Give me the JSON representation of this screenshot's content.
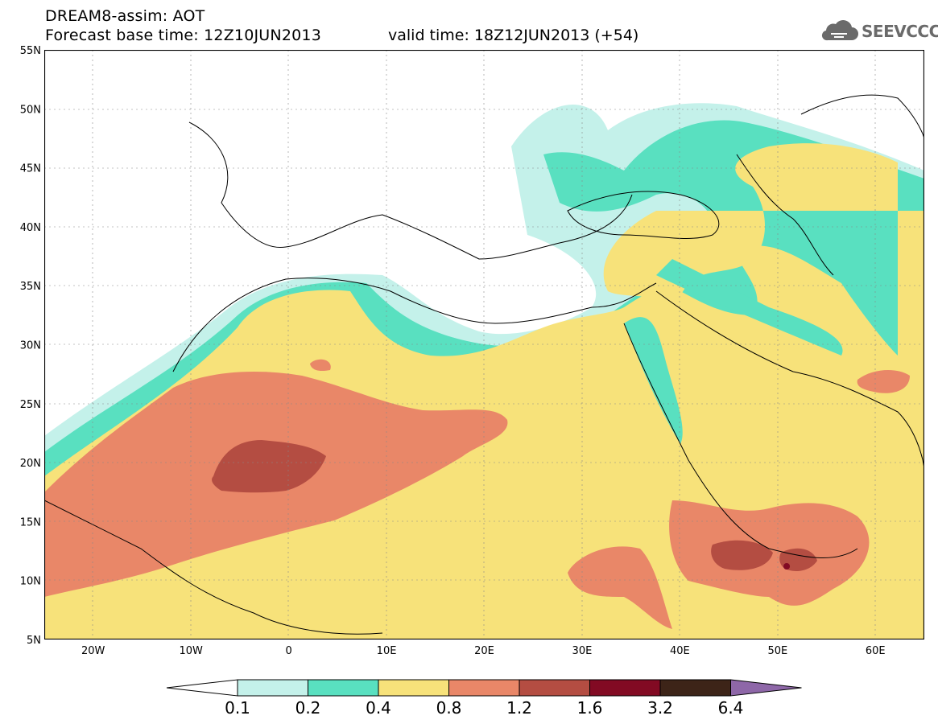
{
  "header": {
    "title_line1": "DREAM8-assim: AOT",
    "title_line2": "Forecast base time: 12Z10JUN2013",
    "valid_time": "valid time: 18Z12JUN2013 (+54)",
    "logo_text": "SEEVCCC",
    "logo_icon": "cloud-icon"
  },
  "map": {
    "lat_labels": [
      "55N",
      "50N",
      "45N",
      "40N",
      "35N",
      "30N",
      "25N",
      "20N",
      "15N",
      "10N",
      "5N"
    ],
    "lon_labels": [
      "20W",
      "10W",
      "0",
      "10E",
      "20E",
      "30E",
      "40E",
      "50E",
      "60E"
    ],
    "lat_range": [
      5,
      55
    ],
    "lon_range": [
      -25,
      65
    ]
  },
  "legend": {
    "levels": [
      "0.1",
      "0.2",
      "0.4",
      "0.8",
      "1.2",
      "1.6",
      "3.2",
      "6.4"
    ],
    "colors": [
      "#ffffff",
      "#c4f1ea",
      "#59e0c0",
      "#f7e27a",
      "#e98768",
      "#b44d42",
      "#820a23",
      "#3d2418",
      "#8e67a8"
    ]
  }
}
